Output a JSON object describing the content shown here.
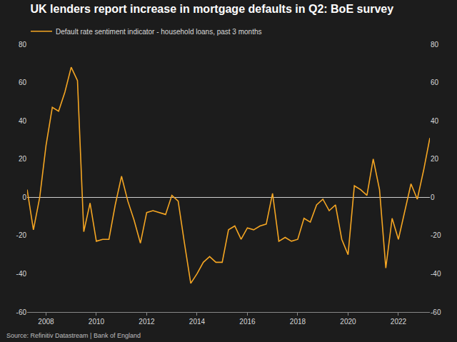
{
  "chart_data": {
    "type": "line",
    "title": "UK lenders report increase in mortgage defaults in Q2: BoE survey",
    "categories": [
      null,
      null,
      null,
      "2008",
      null,
      null,
      null,
      null,
      null,
      null,
      null,
      "2010",
      null,
      null,
      null,
      null,
      null,
      null,
      null,
      "2012",
      null,
      null,
      null,
      null,
      null,
      null,
      null,
      "2014",
      null,
      null,
      null,
      null,
      null,
      null,
      null,
      "2016",
      null,
      null,
      null,
      null,
      null,
      null,
      null,
      "2018",
      null,
      null,
      null,
      null,
      null,
      null,
      null,
      "2020",
      null,
      null,
      null,
      null,
      null,
      null,
      null,
      "2022",
      null,
      null,
      null,
      null,
      null
    ],
    "series": [
      {
        "name": "Default rate sentiment indicator - household loans, past 3 months",
        "color": "#f5a623",
        "values": [
          4,
          -17,
          0,
          27,
          47,
          45,
          55,
          68,
          61,
          -18,
          -3,
          -23,
          -22,
          -22,
          -4,
          11,
          -2,
          -12,
          -24,
          -8,
          -7,
          -8,
          -9,
          1,
          -2,
          -24,
          -45,
          -40,
          -34,
          -31,
          -34,
          -34,
          -17,
          -15,
          -22,
          -16,
          -17,
          -15,
          -14,
          2,
          -23,
          -21,
          -23,
          -22,
          -11,
          -13,
          -4,
          -1,
          -7,
          -4,
          -22,
          -30,
          6,
          4,
          1,
          20,
          4,
          -37,
          -11,
          -22,
          -8,
          7,
          -1,
          14,
          31
        ]
      }
    ],
    "ylim": [
      -60,
      80
    ],
    "yticks": [
      -60,
      -40,
      -20,
      0,
      20,
      40,
      60,
      80
    ],
    "y2lim": [
      -60,
      80
    ],
    "y2ticks": [
      -60,
      -40,
      -20,
      0,
      20,
      40,
      60,
      80
    ],
    "grid": false,
    "legend": "top-left",
    "annotations": [
      "Source: Refinitiv Datastream | Bank of England"
    ]
  }
}
